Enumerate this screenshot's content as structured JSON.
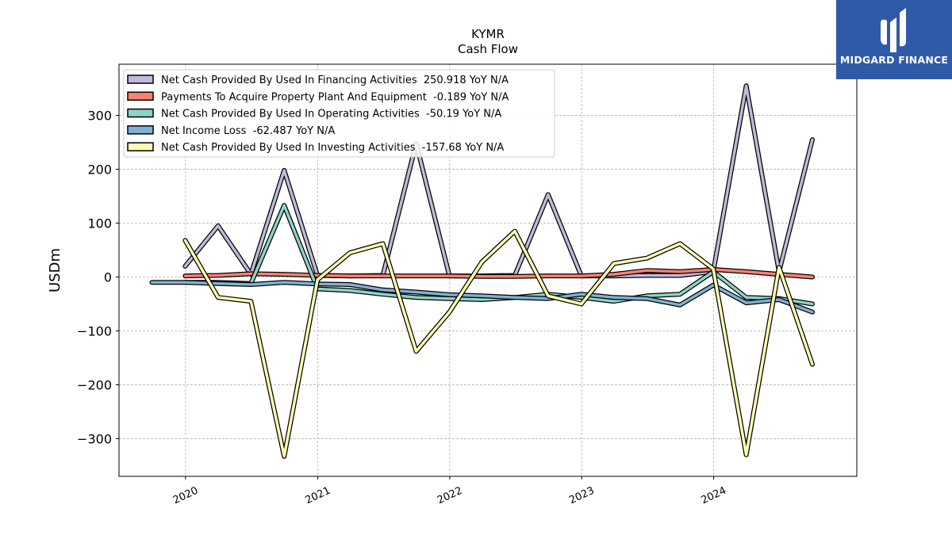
{
  "brand": {
    "name": "MIDGARD FINANCE",
    "bg_color": "#2f5aa8"
  },
  "chart_data": {
    "type": "line",
    "title": "KYMR",
    "subtitle": "Cash Flow",
    "xlabel": "",
    "ylabel": "USDm",
    "ylim": [
      -370,
      395
    ],
    "yticks": [
      -300,
      -200,
      -100,
      0,
      100,
      200,
      300
    ],
    "ytick_labels": [
      "−300",
      "−200",
      "−100",
      "0",
      "100",
      "200",
      "300"
    ],
    "xlim": [
      "2019-07-01",
      "2025-01-31"
    ],
    "xticks": [
      "2020-01-01",
      "2021-01-01",
      "2022-01-01",
      "2023-01-01",
      "2024-01-01"
    ],
    "xtick_labels": [
      "2020",
      "2021",
      "2022",
      "2023",
      "2024"
    ],
    "grid": true,
    "legend_position": "top-left",
    "series": [
      {
        "name": "Net Cash Provided By Used In Financing Activities",
        "legend": "Net Cash Provided By Used In Financing Activities  250.918 YoY N/A",
        "color": "#bebada",
        "x": [
          "2019-12-31",
          "2020-03-31",
          "2020-06-30",
          "2020-09-30",
          "2020-12-31",
          "2021-03-31",
          "2021-06-30",
          "2021-09-30",
          "2021-12-31",
          "2022-03-31",
          "2022-06-30",
          "2022-09-30",
          "2022-12-31",
          "2023-03-31",
          "2023-06-30",
          "2023-09-30",
          "2023-12-31",
          "2024-03-31",
          "2024-06-30",
          "2024-09-30"
        ],
        "values": [
          20,
          95,
          5,
          198,
          3,
          2,
          3,
          248,
          2,
          2,
          3,
          153,
          2,
          2,
          3,
          3,
          10,
          355,
          10,
          255
        ]
      },
      {
        "name": "Payments To Acquire Property Plant And Equipment",
        "legend": "Payments To Acquire Property Plant And Equipment  -0.189 YoY N/A",
        "color": "#fb8072",
        "x": [
          "2019-12-31",
          "2020-03-31",
          "2020-06-30",
          "2020-09-30",
          "2020-12-31",
          "2021-03-31",
          "2021-06-30",
          "2021-09-30",
          "2021-12-31",
          "2022-03-31",
          "2022-06-30",
          "2022-09-30",
          "2022-12-31",
          "2023-03-31",
          "2023-06-30",
          "2023-09-30",
          "2023-12-31",
          "2024-03-31",
          "2024-06-30",
          "2024-09-30"
        ],
        "values": [
          2,
          3,
          6,
          5,
          3,
          2,
          2,
          2,
          2,
          1,
          1,
          2,
          2,
          5,
          12,
          10,
          14,
          10,
          5,
          0
        ]
      },
      {
        "name": "Net Cash Provided By Used In Operating Activities",
        "legend": "Net Cash Provided By Used In Operating Activities  -50.19 YoY N/A",
        "color": "#8dd3c7",
        "x": [
          "2019-12-31",
          "2020-03-31",
          "2020-06-30",
          "2020-09-30",
          "2020-12-31",
          "2021-03-31",
          "2021-06-30",
          "2021-09-30",
          "2021-12-31",
          "2022-03-31",
          "2022-06-30",
          "2022-09-30",
          "2022-12-31",
          "2023-03-31",
          "2023-06-30",
          "2023-09-30",
          "2023-12-31",
          "2024-03-31",
          "2024-06-30",
          "2024-09-30"
        ],
        "values": [
          -10,
          -10,
          -12,
          133,
          -22,
          -25,
          -32,
          -38,
          -40,
          -42,
          -38,
          -32,
          -38,
          -45,
          -35,
          -32,
          10,
          -38,
          -40,
          -50
        ]
      },
      {
        "name": "Net Income Loss",
        "legend": "Net Income Loss  -62.487 YoY N/A",
        "color": "#80b1d3",
        "x": [
          "2019-09-30",
          "2019-12-31",
          "2020-03-31",
          "2020-06-30",
          "2020-09-30",
          "2020-12-31",
          "2021-03-31",
          "2021-06-30",
          "2021-09-30",
          "2021-12-31",
          "2022-03-31",
          "2022-06-30",
          "2022-09-30",
          "2022-12-31",
          "2023-03-31",
          "2023-06-30",
          "2023-09-30",
          "2023-12-31",
          "2024-03-31",
          "2024-06-30",
          "2024-09-30"
        ],
        "values": [
          -10,
          -10,
          -12,
          -14,
          -10,
          -13,
          -14,
          -24,
          -28,
          -33,
          -35,
          -38,
          -40,
          -32,
          -38,
          -40,
          -52,
          -15,
          -48,
          -42,
          -65
        ]
      },
      {
        "name": "Net Cash Provided By Used In Investing Activities",
        "legend": "Net Cash Provided By Used In Investing Activities  -157.68 YoY N/A",
        "color": "#ffffb3",
        "x": [
          "2019-12-31",
          "2020-03-31",
          "2020-06-30",
          "2020-09-30",
          "2020-12-31",
          "2021-03-31",
          "2021-06-30",
          "2021-09-30",
          "2021-12-31",
          "2022-03-31",
          "2022-06-30",
          "2022-09-30",
          "2022-12-31",
          "2023-03-31",
          "2023-06-30",
          "2023-09-30",
          "2023-12-31",
          "2024-03-31",
          "2024-06-30",
          "2024-09-30"
        ],
        "values": [
          68,
          -38,
          -45,
          -333,
          -5,
          45,
          62,
          -138,
          -65,
          28,
          85,
          -35,
          -50,
          25,
          35,
          62,
          15,
          -330,
          18,
          -162
        ]
      }
    ]
  }
}
